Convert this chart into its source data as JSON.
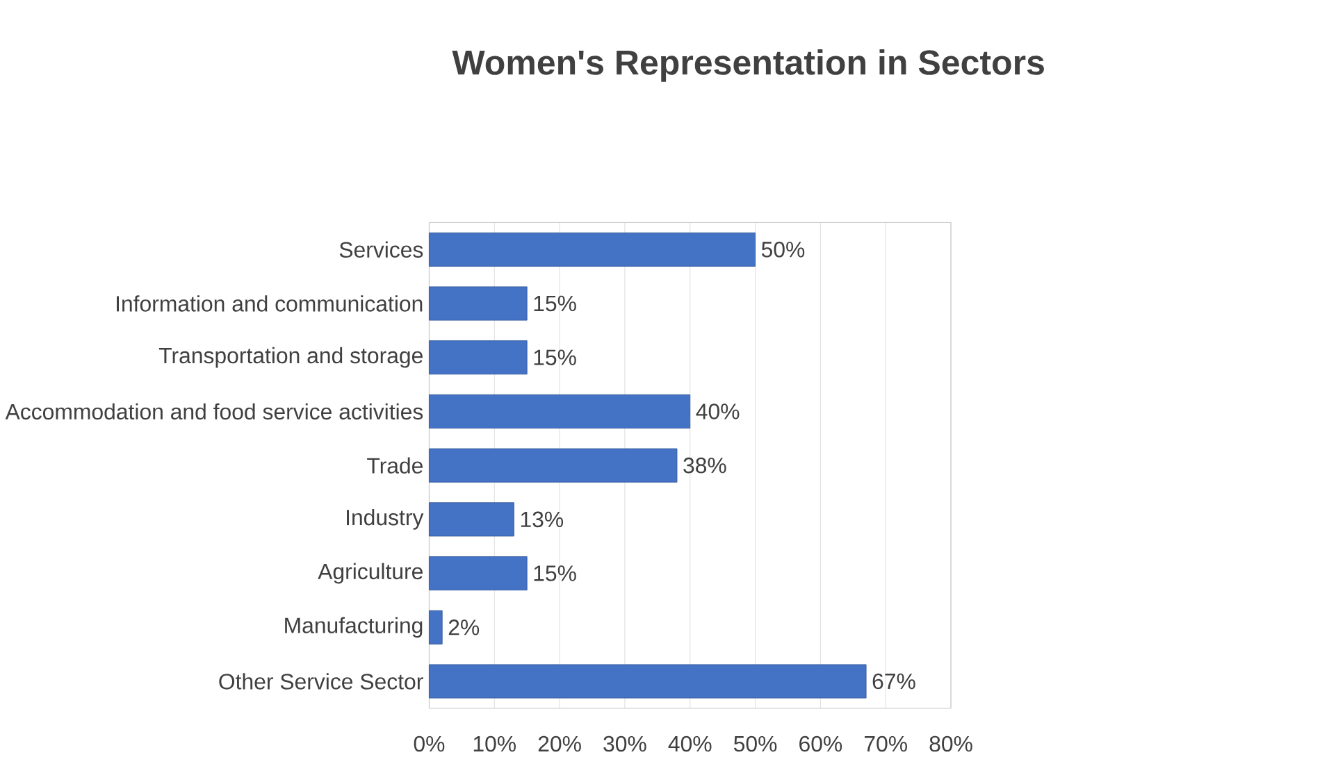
{
  "chart_data": {
    "type": "bar",
    "orientation": "horizontal",
    "title": "Women's Representation in Sectors",
    "categories": [
      "Services",
      "Information and communication",
      "Transportation and storage",
      "Accommodation and food service activities",
      "Trade",
      "Industry",
      "Agriculture",
      "Manufacturing",
      "Other Service Sector"
    ],
    "values": [
      50,
      15,
      15,
      40,
      38,
      13,
      15,
      2,
      67
    ],
    "value_labels": [
      "50%",
      "15%",
      "15%",
      "40%",
      "38%",
      "13%",
      "15%",
      "2%",
      "67%"
    ],
    "color": "#4472c4",
    "xlim": [
      0,
      80
    ],
    "xticks": [
      {
        "value": 0,
        "label": "0%"
      },
      {
        "value": 10,
        "label": "10%"
      },
      {
        "value": 20,
        "label": "20%"
      },
      {
        "value": 30,
        "label": "30%"
      },
      {
        "value": 40,
        "label": "40%"
      },
      {
        "value": 50,
        "label": "50%"
      },
      {
        "value": 60,
        "label": "60%"
      },
      {
        "value": 70,
        "label": "70%"
      },
      {
        "value": 80,
        "label": "80%"
      }
    ],
    "grid": "x"
  }
}
